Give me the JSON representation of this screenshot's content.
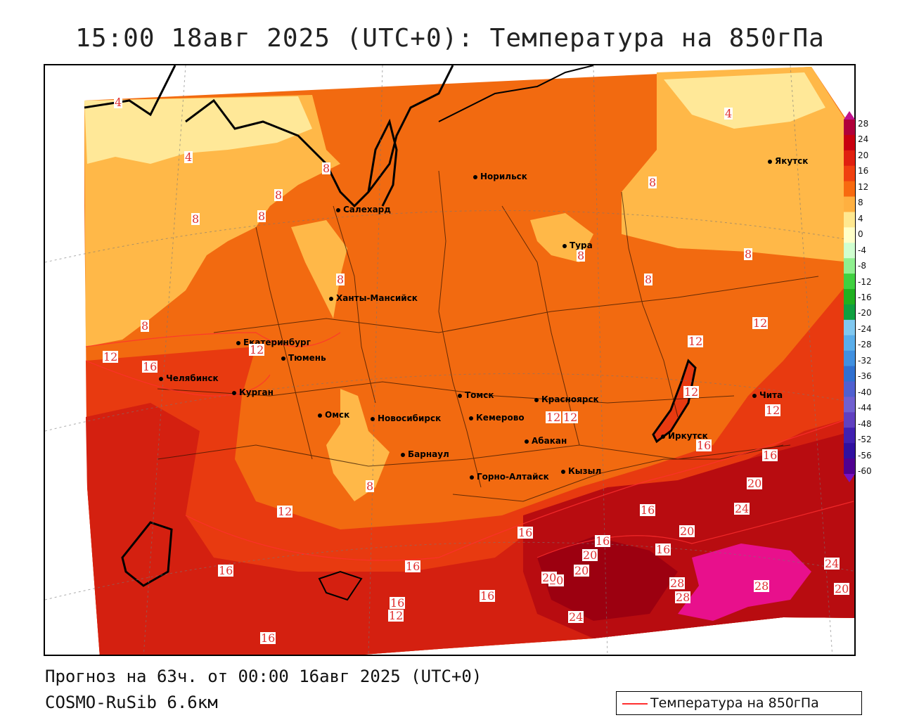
{
  "title": "15:00 18авг 2025 (UTC+0): Температура на 850гПа",
  "footer": {
    "forecast": "Прогноз на 63ч. от 00:00 16авг 2025 (UTC+0)",
    "model": "COSMO-RuSib 6.6км"
  },
  "legend": {
    "label": "Температура на 850гПа",
    "line_color": "#ff3030"
  },
  "colorbar": {
    "labels": [
      "28",
      "24",
      "20",
      "16",
      "12",
      "8",
      "4",
      "0",
      "-4",
      "-8",
      "-12",
      "-16",
      "-20",
      "-24",
      "-28",
      "-32",
      "-36",
      "-40",
      "-44",
      "-48",
      "-52",
      "-56",
      "-60"
    ],
    "colors": [
      "#b0003a",
      "#c80010",
      "#e02010",
      "#f04010",
      "#f86a10",
      "#ffb040",
      "#ffe890",
      "#ffffc8",
      "#d0ffd0",
      "#90f090",
      "#40d040",
      "#20b020",
      "#10a040",
      "#80c8f0",
      "#5aaeea",
      "#4090e0",
      "#3070d0",
      "#5060d0",
      "#7060d0",
      "#6040c0",
      "#4020b0",
      "#3010a0",
      "#500090"
    ]
  },
  "cities": [
    {
      "name": "Салехард"
    },
    {
      "name": "Норильск"
    },
    {
      "name": "Якутск"
    },
    {
      "name": "Тура"
    },
    {
      "name": "Ханты-Мансийск"
    },
    {
      "name": "Екатеринбург"
    },
    {
      "name": "Тюмень"
    },
    {
      "name": "Челябинск"
    },
    {
      "name": "Курган"
    },
    {
      "name": "Омск"
    },
    {
      "name": "Томск"
    },
    {
      "name": "Новосибирск"
    },
    {
      "name": "Кемерово"
    },
    {
      "name": "Красноярск"
    },
    {
      "name": "Абакан"
    },
    {
      "name": "Барнаул"
    },
    {
      "name": "Иркутск"
    },
    {
      "name": "Чита"
    },
    {
      "name": "Кызыл"
    },
    {
      "name": "Горно-Алтайск"
    }
  ],
  "isolines": [
    "4",
    "4",
    "4",
    "8",
    "8",
    "8",
    "8",
    "8",
    "8",
    "8",
    "8",
    "8",
    "8",
    "12",
    "12",
    "12",
    "12",
    "12",
    "12",
    "12",
    "12",
    "16",
    "16",
    "16",
    "16",
    "16",
    "16",
    "16",
    "16",
    "16",
    "16",
    "20",
    "20",
    "20",
    "20",
    "20",
    "20",
    "24",
    "24",
    "24",
    "28",
    "28",
    "28",
    "8",
    "12",
    "16",
    "12",
    "20",
    "16"
  ]
}
